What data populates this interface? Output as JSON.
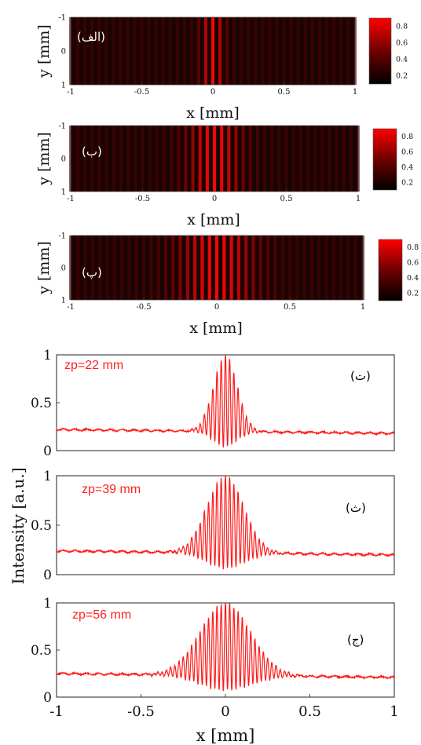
{
  "chart_data": [
    {
      "type": "heatmap",
      "panel_label": "(الف)",
      "xlabel": "x [mm]",
      "ylabel": "y [mm]",
      "xlim": [
        -1,
        1
      ],
      "ylim": [
        -1,
        1
      ],
      "x_ticks": [
        "-1",
        "-0.5",
        "0",
        "0.5",
        "1"
      ],
      "y_ticks": [
        "-1",
        "0",
        "1"
      ],
      "colorbar_ticks": [
        "0.8",
        "0.6",
        "0.4",
        "0.2"
      ],
      "fringe_period_mm": 0.05,
      "envelope_width_mm": 0.06,
      "background_intensity": 0.2
    },
    {
      "type": "heatmap",
      "panel_label": "(ب)",
      "xlabel": "x [mm]",
      "ylabel": "y [mm]",
      "xlim": [
        -1,
        1
      ],
      "ylim": [
        -1,
        1
      ],
      "x_ticks": [
        "-1",
        "-0.5",
        "0",
        "0.5",
        "1"
      ],
      "y_ticks": [
        "-1",
        "0",
        "1"
      ],
      "colorbar_ticks": [
        "0.8",
        "0.6",
        "0.4",
        "0.2"
      ],
      "fringe_period_mm": 0.05,
      "envelope_width_mm": 0.14,
      "background_intensity": 0.2
    },
    {
      "type": "heatmap",
      "panel_label": "(پ)",
      "xlabel": "x [mm]",
      "ylabel": "y [mm]",
      "xlim": [
        -1,
        1
      ],
      "ylim": [
        -1,
        1
      ],
      "x_ticks": [
        "-1",
        "-0.5",
        "0",
        "0.5",
        "1"
      ],
      "y_ticks": [
        "-1",
        "0",
        "1"
      ],
      "colorbar_ticks": [
        "0.8",
        "0.6",
        "0.4",
        "0.2"
      ],
      "fringe_period_mm": 0.05,
      "envelope_width_mm": 0.2,
      "background_intensity": 0.2
    },
    {
      "type": "line",
      "panel_label": "(ت)",
      "annotation": "zp=22 mm",
      "xlim": [
        -1,
        1
      ],
      "ylim": [
        0,
        1
      ],
      "y_ticks": [
        "0",
        "0.5",
        "1"
      ],
      "fringe_period_mm": 0.025,
      "envelope_width_mm": 0.07,
      "baseline": 0.2,
      "peak": 1.0
    },
    {
      "type": "line",
      "panel_label": "(ث)",
      "annotation": "zp=39 mm",
      "xlim": [
        -1,
        1
      ],
      "ylim": [
        0,
        1
      ],
      "y_ticks": [
        "0",
        "0.5",
        "1"
      ],
      "fringe_period_mm": 0.025,
      "envelope_width_mm": 0.11,
      "baseline": 0.22,
      "peak": 1.0
    },
    {
      "type": "line",
      "panel_label": "(ج)",
      "annotation": "zp=56 mm",
      "xlim": [
        -1,
        1
      ],
      "ylim": [
        0,
        1
      ],
      "y_ticks": [
        "0",
        "0.5",
        "1"
      ],
      "x_ticks": [
        "-1",
        "-0.5",
        "0",
        "0.5",
        "1"
      ],
      "xlabel": "x [mm]",
      "fringe_period_mm": 0.025,
      "envelope_width_mm": 0.15,
      "baseline": 0.23,
      "peak": 1.0
    }
  ],
  "shared_ylabel": "Intensity [a.u.]",
  "colors": {
    "line": "#ff1a1a",
    "annotation": "#ff2020",
    "heat_low": "#000000",
    "heat_high": "#ff0000"
  }
}
